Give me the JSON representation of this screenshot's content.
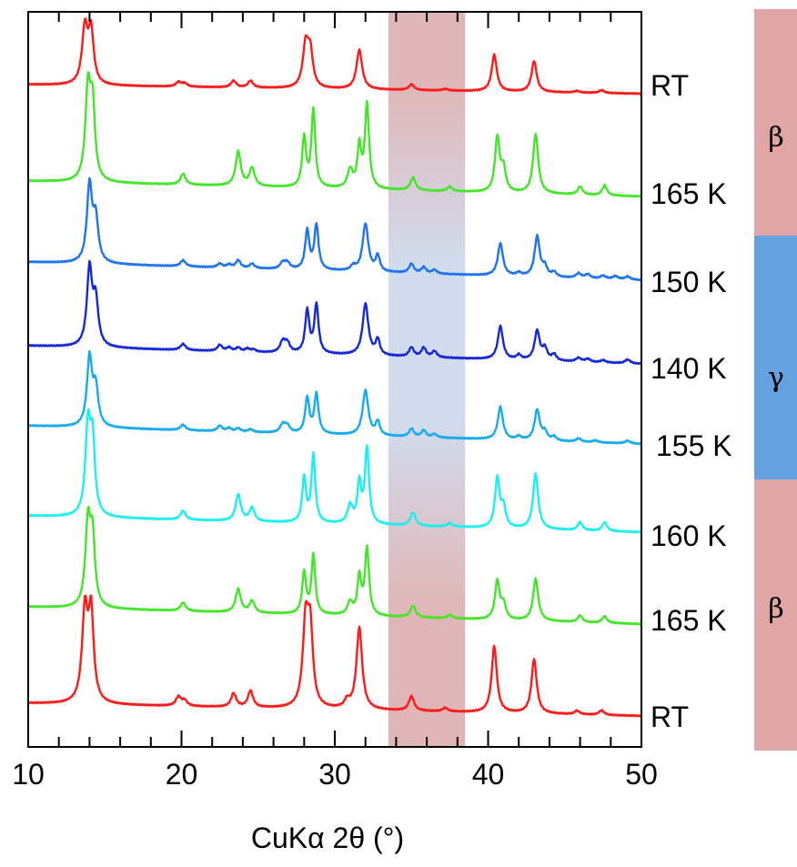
{
  "chart_data": {
    "type": "line",
    "title": "",
    "xlabel": "CuKα 2θ (°)",
    "ylabel": "",
    "xlim": [
      10,
      50
    ],
    "x_ticks": [
      "10",
      "20",
      "30",
      "40",
      "50"
    ],
    "y_axis": "stacked offset traces, no scale",
    "grid": false,
    "highlight_band": {
      "x": [
        33.5,
        38.5
      ],
      "colors_top_to_bottom": [
        "#d9a3a3",
        "#c5d4ea",
        "#d9a3a3"
      ]
    },
    "phase_bar": [
      {
        "label": "β",
        "color": "#e2a5a5",
        "from_trace": 0,
        "to_trace": 1
      },
      {
        "label": "γ",
        "color": "#65a0e0",
        "from_trace": 2,
        "to_trace": 4
      },
      {
        "label": "β",
        "color": "#e2a5a5",
        "from_trace": 5,
        "to_trace": 7
      }
    ],
    "series": [
      {
        "name": "RT",
        "color": "#ff1a1a",
        "label_dx": 10,
        "peaks": [
          [
            13.7,
            1.0,
            0.22
          ],
          [
            14.1,
            0.92,
            0.2
          ],
          [
            19.8,
            0.08,
            0.2
          ],
          [
            20.2,
            0.06,
            0.2
          ],
          [
            23.4,
            0.12,
            0.2
          ],
          [
            24.5,
            0.12,
            0.2
          ],
          [
            28.1,
            0.75,
            0.22
          ],
          [
            28.4,
            0.6,
            0.2
          ],
          [
            31.6,
            0.7,
            0.22
          ],
          [
            35.0,
            0.1,
            0.2
          ],
          [
            37.2,
            0.03,
            0.2
          ],
          [
            40.4,
            0.65,
            0.2
          ],
          [
            43.0,
            0.55,
            0.2
          ],
          [
            45.8,
            0.03,
            0.2
          ],
          [
            47.4,
            0.05,
            0.2
          ]
        ]
      },
      {
        "name": "165 K",
        "color": "#44e62a",
        "label_dx": 10,
        "peaks": [
          [
            13.9,
            1.0,
            0.2
          ],
          [
            14.2,
            0.78,
            0.18
          ],
          [
            20.1,
            0.12,
            0.2
          ],
          [
            23.7,
            0.38,
            0.2
          ],
          [
            24.6,
            0.2,
            0.2
          ],
          [
            28.0,
            0.55,
            0.15
          ],
          [
            28.6,
            0.85,
            0.15
          ],
          [
            31.0,
            0.2,
            0.2
          ],
          [
            31.6,
            0.45,
            0.15
          ],
          [
            32.1,
            0.92,
            0.16
          ],
          [
            35.1,
            0.14,
            0.2
          ],
          [
            37.5,
            0.05,
            0.2
          ],
          [
            40.6,
            0.6,
            0.18
          ],
          [
            41.0,
            0.25,
            0.18
          ],
          [
            43.1,
            0.65,
            0.2
          ],
          [
            46.0,
            0.09,
            0.18
          ],
          [
            47.6,
            0.11,
            0.18
          ]
        ]
      },
      {
        "name": "150 K",
        "color": "#1e74f0",
        "label_dx": 10,
        "peaks": [
          [
            14.0,
            1.0,
            0.2
          ],
          [
            14.4,
            0.55,
            0.2
          ],
          [
            20.1,
            0.08,
            0.2
          ],
          [
            22.5,
            0.05,
            0.18
          ],
          [
            23.1,
            0.04,
            0.18
          ],
          [
            23.7,
            0.1,
            0.18
          ],
          [
            24.6,
            0.06,
            0.18
          ],
          [
            26.6,
            0.08,
            0.2
          ],
          [
            26.9,
            0.08,
            0.2
          ],
          [
            28.2,
            0.5,
            0.16
          ],
          [
            28.8,
            0.58,
            0.16
          ],
          [
            31.2,
            0.06,
            0.18
          ],
          [
            32.0,
            0.62,
            0.22
          ],
          [
            32.8,
            0.2,
            0.16
          ],
          [
            35.0,
            0.12,
            0.18
          ],
          [
            35.8,
            0.08,
            0.18
          ],
          [
            36.5,
            0.05,
            0.18
          ],
          [
            40.8,
            0.42,
            0.2
          ],
          [
            42.0,
            0.04,
            0.18
          ],
          [
            43.2,
            0.52,
            0.2
          ],
          [
            43.7,
            0.12,
            0.18
          ],
          [
            44.3,
            0.06,
            0.18
          ],
          [
            45.9,
            0.06,
            0.2
          ],
          [
            46.5,
            0.05,
            0.2
          ],
          [
            47.5,
            0.04,
            0.2
          ],
          [
            48.3,
            0.04,
            0.2
          ],
          [
            49.1,
            0.04,
            0.2
          ]
        ]
      },
      {
        "name": "140 K",
        "color": "#1428d8",
        "label_dx": 10,
        "peaks": [
          [
            14.0,
            1.0,
            0.2
          ],
          [
            14.4,
            0.58,
            0.2
          ],
          [
            20.1,
            0.08,
            0.2
          ],
          [
            22.5,
            0.08,
            0.18
          ],
          [
            23.1,
            0.05,
            0.18
          ],
          [
            23.7,
            0.05,
            0.18
          ],
          [
            24.3,
            0.04,
            0.18
          ],
          [
            24.7,
            0.03,
            0.18
          ],
          [
            26.6,
            0.14,
            0.2
          ],
          [
            26.9,
            0.12,
            0.2
          ],
          [
            28.2,
            0.55,
            0.16
          ],
          [
            28.8,
            0.63,
            0.16
          ],
          [
            32.0,
            0.67,
            0.22
          ],
          [
            32.8,
            0.2,
            0.16
          ],
          [
            35.0,
            0.12,
            0.18
          ],
          [
            35.8,
            0.12,
            0.18
          ],
          [
            36.5,
            0.08,
            0.18
          ],
          [
            40.8,
            0.43,
            0.2
          ],
          [
            42.0,
            0.06,
            0.18
          ],
          [
            43.2,
            0.38,
            0.2
          ],
          [
            43.7,
            0.15,
            0.18
          ],
          [
            44.3,
            0.08,
            0.18
          ],
          [
            45.9,
            0.05,
            0.2
          ],
          [
            46.5,
            0.04,
            0.2
          ],
          [
            47.5,
            0.03,
            0.2
          ],
          [
            49.1,
            0.05,
            0.2
          ]
        ]
      },
      {
        "name": "155 K",
        "color": "#16aaee",
        "label_dx": 16,
        "peaks": [
          [
            14.0,
            1.0,
            0.2
          ],
          [
            14.4,
            0.55,
            0.2
          ],
          [
            20.1,
            0.08,
            0.2
          ],
          [
            22.5,
            0.08,
            0.18
          ],
          [
            23.1,
            0.05,
            0.18
          ],
          [
            23.7,
            0.05,
            0.18
          ],
          [
            24.5,
            0.04,
            0.18
          ],
          [
            26.6,
            0.12,
            0.2
          ],
          [
            26.9,
            0.1,
            0.2
          ],
          [
            28.2,
            0.52,
            0.16
          ],
          [
            28.8,
            0.58,
            0.16
          ],
          [
            32.0,
            0.66,
            0.22
          ],
          [
            32.8,
            0.2,
            0.16
          ],
          [
            35.0,
            0.12,
            0.18
          ],
          [
            35.8,
            0.1,
            0.18
          ],
          [
            36.5,
            0.05,
            0.18
          ],
          [
            40.8,
            0.48,
            0.2
          ],
          [
            42.0,
            0.05,
            0.18
          ],
          [
            43.2,
            0.45,
            0.2
          ],
          [
            43.7,
            0.12,
            0.18
          ],
          [
            44.3,
            0.06,
            0.18
          ],
          [
            45.9,
            0.05,
            0.2
          ],
          [
            47.0,
            0.03,
            0.2
          ],
          [
            49.1,
            0.04,
            0.2
          ]
        ]
      },
      {
        "name": "160 K",
        "color": "#1af0f0",
        "label_dx": 10,
        "peaks": [
          [
            13.9,
            1.0,
            0.2
          ],
          [
            14.2,
            0.78,
            0.18
          ],
          [
            20.1,
            0.1,
            0.2
          ],
          [
            23.7,
            0.3,
            0.2
          ],
          [
            24.6,
            0.15,
            0.2
          ],
          [
            28.0,
            0.5,
            0.15
          ],
          [
            28.6,
            0.76,
            0.15
          ],
          [
            31.0,
            0.2,
            0.2
          ],
          [
            31.6,
            0.45,
            0.15
          ],
          [
            32.1,
            0.85,
            0.16
          ],
          [
            35.1,
            0.15,
            0.2
          ],
          [
            37.5,
            0.04,
            0.2
          ],
          [
            40.6,
            0.55,
            0.18
          ],
          [
            41.0,
            0.22,
            0.18
          ],
          [
            43.1,
            0.62,
            0.2
          ],
          [
            46.0,
            0.09,
            0.18
          ],
          [
            47.6,
            0.1,
            0.18
          ]
        ]
      },
      {
        "name": "165 K",
        "color": "#44e62a",
        "label_dx": 10,
        "peaks": [
          [
            13.9,
            1.0,
            0.2
          ],
          [
            14.2,
            0.78,
            0.18
          ],
          [
            20.1,
            0.1,
            0.2
          ],
          [
            23.7,
            0.28,
            0.2
          ],
          [
            24.6,
            0.14,
            0.2
          ],
          [
            28.0,
            0.5,
            0.15
          ],
          [
            28.6,
            0.7,
            0.15
          ],
          [
            31.0,
            0.15,
            0.2
          ],
          [
            31.6,
            0.45,
            0.15
          ],
          [
            32.1,
            0.8,
            0.16
          ],
          [
            35.1,
            0.14,
            0.2
          ],
          [
            37.5,
            0.04,
            0.2
          ],
          [
            40.6,
            0.46,
            0.18
          ],
          [
            41.0,
            0.18,
            0.18
          ],
          [
            43.1,
            0.5,
            0.2
          ],
          [
            46.0,
            0.08,
            0.18
          ],
          [
            47.6,
            0.08,
            0.18
          ]
        ]
      },
      {
        "name": "RT",
        "color": "#ff1a1a",
        "label_dx": 10,
        "peaks": [
          [
            13.7,
            1.0,
            0.22
          ],
          [
            14.1,
            0.96,
            0.2
          ],
          [
            19.8,
            0.1,
            0.2
          ],
          [
            20.2,
            0.06,
            0.2
          ],
          [
            23.4,
            0.15,
            0.2
          ],
          [
            24.5,
            0.18,
            0.2
          ],
          [
            28.1,
            0.92,
            0.22
          ],
          [
            28.4,
            0.8,
            0.2
          ],
          [
            30.8,
            0.08,
            0.2
          ],
          [
            31.6,
            0.9,
            0.22
          ],
          [
            35.0,
            0.16,
            0.2
          ],
          [
            37.2,
            0.04,
            0.2
          ],
          [
            40.4,
            0.73,
            0.2
          ],
          [
            43.0,
            0.6,
            0.2
          ],
          [
            45.8,
            0.04,
            0.2
          ],
          [
            47.4,
            0.05,
            0.2
          ]
        ]
      }
    ]
  }
}
